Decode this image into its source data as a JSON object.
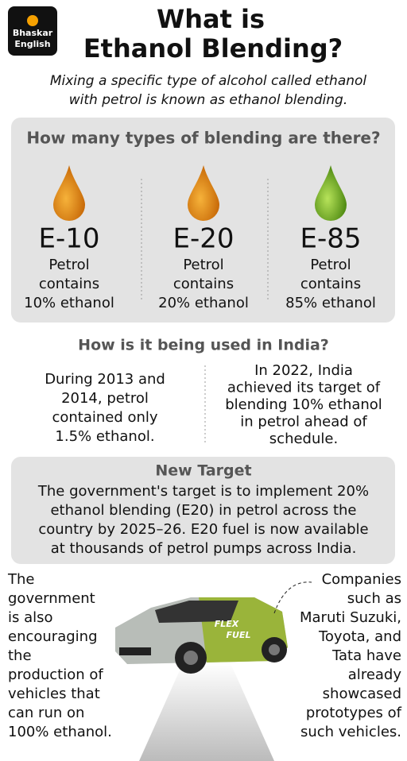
{
  "logo": [
    "Bhaskar",
    "English"
  ],
  "title": [
    "What is",
    "Ethanol Blending?"
  ],
  "subtitle": [
    "Mixing a specific type of alcohol called ethanol",
    "with petrol is known as ethanol blending."
  ],
  "types_heading": "How many types of blending are there?",
  "types": [
    {
      "label": "E-10",
      "lines": [
        "Petrol",
        "contains",
        "10% ethanol"
      ]
    },
    {
      "label": "E-20",
      "lines": [
        "Petrol",
        "contains",
        "20% ethanol"
      ]
    },
    {
      "label": "E-85",
      "lines": [
        "Petrol",
        "contains",
        "85% ethanol"
      ]
    }
  ],
  "india_heading": "How is it being used in India?",
  "india_left": [
    "During 2013 and",
    "2014, petrol",
    "contained only",
    "1.5% ethanol."
  ],
  "india_right": [
    "In 2022, India",
    "achieved its target of",
    "blending 10% ethanol",
    "in petrol ahead of",
    "schedule."
  ],
  "target_heading": "New Target",
  "target_lines": [
    "The government's target is to implement 20%",
    "ethanol blending (E20) in petrol across the",
    "country by 2025–26. E20 fuel is now available",
    "at thousands of petrol pumps across India."
  ],
  "bottom_left": [
    "The",
    "government",
    "is also",
    "encouraging",
    "the",
    "production of",
    "vehicles that",
    "can run on",
    "100% ethanol."
  ],
  "bottom_right": [
    "Companies",
    "such as",
    "Maruti Suzuki,",
    "Toyota, and",
    "Tata have",
    "already",
    "showcased",
    "prototypes of",
    "such vehicles."
  ],
  "car_text": [
    "FLEX",
    "FUEL"
  ]
}
